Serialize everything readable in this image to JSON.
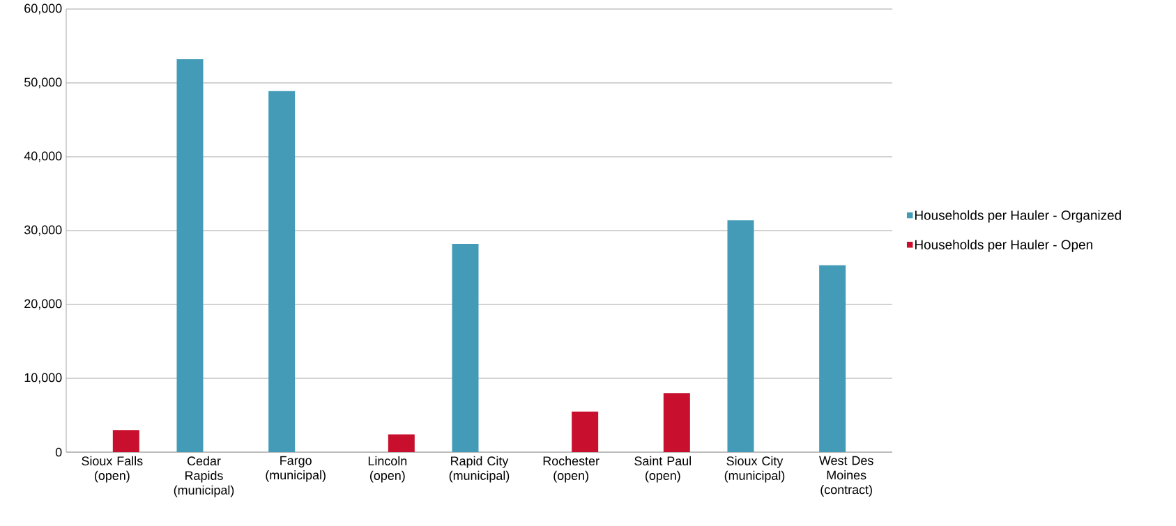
{
  "chart_data": {
    "type": "bar",
    "categories": [
      "Sioux Falls (open)",
      "Cedar Rapids (municipal)",
      "Fargo (municipal)",
      "Lincoln (open)",
      "Rapid City (municipal)",
      "Rochester (open)",
      "Saint Paul (open)",
      "Sioux City (municipal)",
      "West Des Moines (contract)"
    ],
    "series": [
      {
        "name": "Households per Hauler - Organized",
        "color": "#439bb8",
        "values": [
          null,
          53200,
          48900,
          null,
          28200,
          null,
          null,
          31400,
          25300
        ]
      },
      {
        "name": "Households per Hauler - Open",
        "color": "#c8102e",
        "values": [
          3000,
          null,
          null,
          2400,
          null,
          5500,
          8000,
          null,
          null
        ]
      }
    ],
    "ylim": [
      0,
      60000
    ],
    "yticks": [
      0,
      {
        "value": 10000,
        "label": "10,000"
      },
      {
        "value": 20000,
        "label": "20,000"
      },
      {
        "value": 30000,
        "label": "30,000"
      },
      {
        "value": 40000,
        "label": "40,000"
      },
      {
        "value": 50000,
        "label": "50,000"
      },
      {
        "value": 60000,
        "label": "60,000"
      }
    ],
    "grid": "y",
    "legend": "right"
  }
}
